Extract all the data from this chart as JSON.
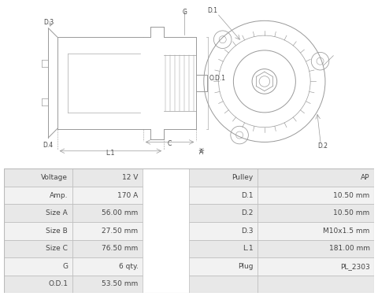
{
  "bg_color": "#ffffff",
  "table_data": {
    "left_col1": [
      "Voltage",
      "Amp.",
      "Size A",
      "Size B",
      "Size C",
      "G",
      "O.D.1"
    ],
    "left_col2": [
      "12 V",
      "170 A",
      "56.00 mm",
      "27.50 mm",
      "76.50 mm",
      "6 qty.",
      "53.50 mm"
    ],
    "right_col1": [
      "Pulley",
      "D.1",
      "D.2",
      "D.3",
      "L.1",
      "Plug",
      ""
    ],
    "right_col2": [
      "AP",
      "10.50 mm",
      "10.50 mm",
      "M10x1.5 mm",
      "181.00 mm",
      "PL_2303",
      ""
    ]
  },
  "row_colors": [
    "#e8e8e8",
    "#f2f2f2"
  ],
  "line_color": "#bbbbbb",
  "text_color": "#444444",
  "drawing_color": "#999999",
  "label_color": "#555555"
}
